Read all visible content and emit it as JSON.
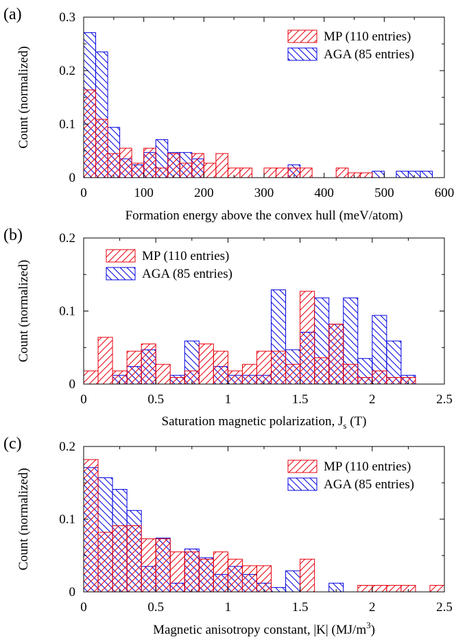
{
  "colors": {
    "MP": "#e8000b",
    "AGA": "#0000e0"
  },
  "chart_data": [
    {
      "panel": "(a)",
      "type": "bar",
      "xlabel": "Formation energy above the convex hull (meV/atom)",
      "ylabel": "Count (normalized)",
      "xlim": [
        0,
        600
      ],
      "ylim": [
        0,
        0.3
      ],
      "xticks": [
        "0",
        "100",
        "200",
        "300",
        "400",
        "500",
        "600"
      ],
      "yticks": [
        "0",
        "0.1",
        "0.2",
        "0.3"
      ],
      "bin_width": 20,
      "bin_start": 0,
      "legend_position": "top-right",
      "series": [
        {
          "name": "MP (110 entries)",
          "key": "MP",
          "values": [
            0.164,
            0.109,
            0.045,
            0.055,
            0.027,
            0.055,
            0.018,
            0.045,
            0.027,
            0.045,
            0.027,
            0.045,
            0.018,
            0.018,
            0,
            0.018,
            0.018,
            0.018,
            0.018,
            0,
            0,
            0.018,
            0.009,
            0.009,
            0,
            0,
            0,
            0,
            0,
            0
          ]
        },
        {
          "name": "AGA (85 entries)",
          "key": "AGA",
          "values": [
            0.271,
            0.235,
            0.094,
            0.035,
            0.024,
            0.047,
            0.071,
            0.047,
            0.047,
            0.035,
            0,
            0,
            0,
            0,
            0,
            0,
            0,
            0.024,
            0,
            0,
            0,
            0,
            0,
            0,
            0.012,
            0,
            0.012,
            0.012,
            0.012,
            0
          ]
        }
      ]
    },
    {
      "panel": "(b)",
      "type": "bar",
      "xlabel_main": "Saturation magnetic polarization, J",
      "xlabel_sub": "s",
      "xlabel_tail": " (T)",
      "ylabel": "Count (normalized)",
      "xlim": [
        0,
        2.5
      ],
      "ylim": [
        0,
        0.2
      ],
      "xticks": [
        "0",
        "0.5",
        "1",
        "1.5",
        "2",
        "2.5"
      ],
      "yticks": [
        "0",
        "0.1",
        "0.2"
      ],
      "bin_width": 0.1,
      "bin_start": 0,
      "legend_position": "top-left",
      "series": [
        {
          "name": "MP (110 entries)",
          "key": "MP",
          "values": [
            0.018,
            0.064,
            0.018,
            0.045,
            0.055,
            0.027,
            0.009,
            0.018,
            0.055,
            0.045,
            0.018,
            0.027,
            0.045,
            0.045,
            0.027,
            0.127,
            0.036,
            0.082,
            0.027,
            0.009,
            0.018,
            0.009,
            0.009,
            0,
            0
          ]
        },
        {
          "name": "AGA (85 entries)",
          "key": "AGA",
          "values": [
            0,
            0,
            0.012,
            0.024,
            0.047,
            0,
            0.012,
            0.059,
            0,
            0.024,
            0.012,
            0.012,
            0.012,
            0.129,
            0.047,
            0.071,
            0.118,
            0.082,
            0.118,
            0.035,
            0.094,
            0.059,
            0.012,
            0,
            0
          ]
        }
      ]
    },
    {
      "panel": "(c)",
      "type": "bar",
      "xlabel_main": "Magnetic anisotropy constant, |K| (MJ/m",
      "xlabel_sup": "3",
      "xlabel_tail": ")",
      "ylabel": "Count (normalized)",
      "xlim": [
        0,
        2.5
      ],
      "ylim": [
        0,
        0.2
      ],
      "xticks": [
        "0",
        "0.5",
        "1",
        "1.5",
        "2",
        "2.5"
      ],
      "yticks": [
        "0",
        "0.1",
        "0.2"
      ],
      "bin_width": 0.1,
      "bin_start": 0,
      "legend_position": "top-right",
      "series": [
        {
          "name": "MP (110 entries)",
          "key": "MP",
          "values": [
            0.182,
            0.082,
            0.091,
            0.091,
            0.073,
            0.073,
            0.055,
            0.055,
            0.045,
            0.055,
            0.045,
            0.036,
            0.036,
            0,
            0,
            0.045,
            0,
            0,
            0,
            0.009,
            0.009,
            0.009,
            0.009,
            0,
            0.009
          ]
        },
        {
          "name": "AGA (85 entries)",
          "key": "AGA",
          "values": [
            0.171,
            0.157,
            0.141,
            0.112,
            0.035,
            0.074,
            0.012,
            0.059,
            0.047,
            0.024,
            0.035,
            0.024,
            0.012,
            0.006,
            0.029,
            0,
            0,
            0.012,
            0,
            0,
            0,
            0,
            0,
            0,
            0
          ]
        }
      ]
    }
  ]
}
